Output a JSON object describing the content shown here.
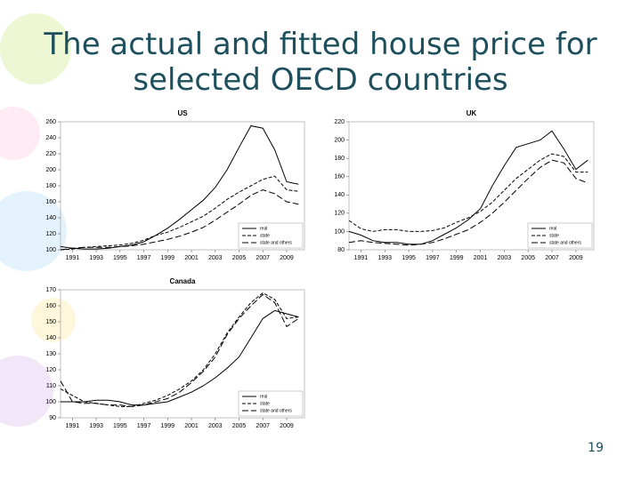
{
  "title": "The actual and fitted house price for selected OECD countries",
  "page_number": 19,
  "chart_data": [
    {
      "type": "line",
      "title": "US",
      "x": [
        1990,
        1991,
        1992,
        1993,
        1994,
        1995,
        1996,
        1997,
        1998,
        1999,
        2000,
        2001,
        2002,
        2003,
        2004,
        2005,
        2006,
        2007,
        2008,
        2009,
        2010
      ],
      "series": [
        {
          "name": "real",
          "color": "#000000",
          "style": "solid",
          "values": [
            104,
            102,
            101,
            101,
            102,
            104,
            106,
            110,
            118,
            127,
            138,
            150,
            162,
            178,
            200,
            228,
            255,
            252,
            225,
            185,
            182
          ]
        },
        {
          "name": "state",
          "color": "#000000",
          "style": "dashed",
          "values": [
            100,
            101,
            103,
            104,
            105,
            106,
            108,
            112,
            118,
            122,
            128,
            135,
            142,
            152,
            163,
            172,
            180,
            188,
            192,
            175,
            173
          ]
        },
        {
          "name": "state and others",
          "color": "#000000",
          "style": "longdash",
          "values": [
            100,
            102,
            103,
            103,
            103,
            104,
            105,
            107,
            110,
            113,
            117,
            122,
            128,
            137,
            147,
            157,
            168,
            175,
            170,
            160,
            157
          ]
        }
      ],
      "xlim": [
        1990,
        2010.5
      ],
      "xticks": [
        1991,
        1993,
        1995,
        1997,
        1999,
        2001,
        2003,
        2005,
        2007,
        2009
      ],
      "ylim": [
        100,
        260
      ],
      "yticks": [
        100,
        120,
        140,
        160,
        180,
        200,
        220,
        240,
        260
      ],
      "legend": "lower right"
    },
    {
      "type": "line",
      "title": "UK",
      "x": [
        1990,
        1991,
        1992,
        1993,
        1994,
        1995,
        1996,
        1997,
        1998,
        1999,
        2000,
        2001,
        2002,
        2003,
        2004,
        2005,
        2006,
        2007,
        2008,
        2009,
        2010
      ],
      "series": [
        {
          "name": "real",
          "color": "#000000",
          "style": "solid",
          "values": [
            100,
            96,
            90,
            88,
            88,
            86,
            86,
            90,
            97,
            104,
            113,
            125,
            150,
            172,
            192,
            196,
            200,
            210,
            190,
            168,
            178
          ]
        },
        {
          "name": "state",
          "color": "#000000",
          "style": "dashed",
          "values": [
            112,
            103,
            100,
            102,
            102,
            100,
            100,
            101,
            104,
            110,
            115,
            122,
            132,
            145,
            158,
            168,
            178,
            185,
            182,
            165,
            165
          ]
        },
        {
          "name": "state and others",
          "color": "#000000",
          "style": "longdash",
          "values": [
            88,
            90,
            88,
            87,
            86,
            85,
            86,
            88,
            92,
            97,
            102,
            110,
            120,
            132,
            145,
            158,
            170,
            178,
            175,
            158,
            153
          ]
        }
      ],
      "xlim": [
        1990,
        2010.5
      ],
      "xticks": [
        1991,
        1993,
        1995,
        1997,
        1999,
        2001,
        2003,
        2005,
        2007,
        2009
      ],
      "ylim": [
        80,
        220
      ],
      "yticks": [
        80,
        100,
        120,
        140,
        160,
        180,
        200,
        220
      ],
      "legend": "lower right"
    },
    {
      "type": "line",
      "title": "Canada",
      "x": [
        1990,
        1991,
        1992,
        1993,
        1994,
        1995,
        1996,
        1997,
        1998,
        1999,
        2000,
        2001,
        2002,
        2003,
        2004,
        2005,
        2006,
        2007,
        2008,
        2009,
        2010
      ],
      "series": [
        {
          "name": "real",
          "color": "#000000",
          "style": "solid",
          "values": [
            100,
            100,
            100,
            101,
            101,
            100,
            98,
            98,
            99,
            100,
            103,
            106,
            110,
            115,
            121,
            128,
            140,
            152,
            157,
            155,
            153
          ]
        },
        {
          "name": "state",
          "color": "#000000",
          "style": "dashed",
          "values": [
            108,
            104,
            100,
            99,
            98,
            97,
            97,
            99,
            101,
            104,
            108,
            113,
            120,
            130,
            143,
            153,
            162,
            168,
            164,
            152,
            153
          ]
        },
        {
          "name": "state and others",
          "color": "#000000",
          "style": "longdash",
          "values": [
            113,
            100,
            99,
            99,
            98,
            98,
            97,
            98,
            100,
            102,
            106,
            112,
            119,
            128,
            142,
            152,
            160,
            167,
            162,
            147,
            152
          ]
        }
      ],
      "xlim": [
        1990,
        2010.5
      ],
      "xticks": [
        1991,
        1993,
        1995,
        1997,
        1999,
        2001,
        2003,
        2005,
        2007,
        2009
      ],
      "ylim": [
        90,
        170
      ],
      "yticks": [
        90,
        100,
        110,
        120,
        130,
        140,
        150,
        160,
        170
      ],
      "legend": "lower right"
    }
  ]
}
